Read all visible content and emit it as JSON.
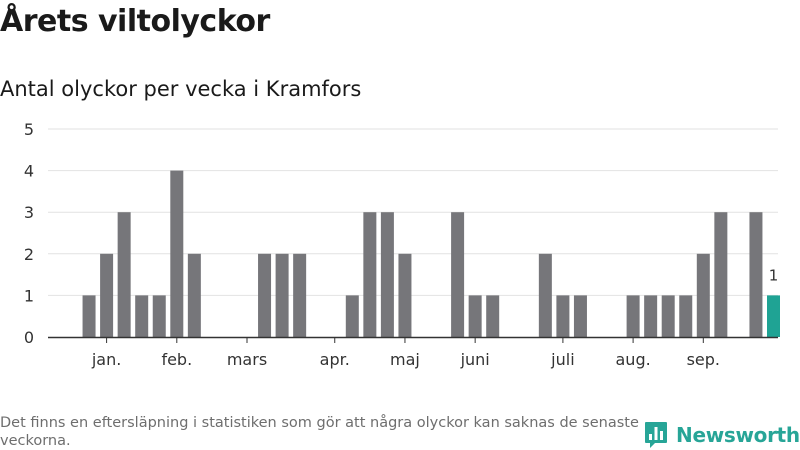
{
  "title": "Årets viltolyckor",
  "subtitle": "Antal olyckor per vecka i Kramfors",
  "footnote": "Det finns en eftersläpning i statistiken som gör att några olyckor kan saknas de senaste veckorna.",
  "brand": "Newsworthy",
  "colors": {
    "bar": "#76767a",
    "highlight": "#1fa394",
    "grid": "#e2e2e2",
    "axis": "#333333",
    "brand": "#27a597"
  },
  "chart_data": {
    "type": "bar",
    "title": "Antal olyckor per vecka i Kramfors",
    "xlabel": "",
    "ylabel": "",
    "ylim": [
      0,
      5
    ],
    "yticks": [
      0,
      1,
      2,
      3,
      4,
      5
    ],
    "weeks": [
      1,
      2,
      3,
      4,
      5,
      6,
      7,
      8,
      9,
      10,
      11,
      12,
      13,
      14,
      15,
      16,
      17,
      18,
      19,
      20,
      21,
      22,
      23,
      24,
      25,
      26,
      27,
      28,
      29,
      30,
      31,
      32,
      33,
      34,
      35,
      36,
      37,
      38,
      39,
      40,
      41
    ],
    "values": [
      0,
      1,
      2,
      3,
      1,
      1,
      4,
      2,
      0,
      0,
      0,
      2,
      2,
      2,
      0,
      0,
      1,
      3,
      3,
      2,
      0,
      0,
      3,
      1,
      1,
      0,
      0,
      2,
      1,
      1,
      0,
      0,
      1,
      1,
      1,
      1,
      2,
      3,
      0,
      3,
      1
    ],
    "highlight_index": 40,
    "highlight_label": "1",
    "month_labels": [
      {
        "label": "jan.",
        "week": 3
      },
      {
        "label": "feb.",
        "week": 7
      },
      {
        "label": "mars",
        "week": 11
      },
      {
        "label": "apr.",
        "week": 16
      },
      {
        "label": "maj",
        "week": 20
      },
      {
        "label": "juni",
        "week": 24
      },
      {
        "label": "juli",
        "week": 29
      },
      {
        "label": "aug.",
        "week": 33
      },
      {
        "label": "sep.",
        "week": 37
      }
    ],
    "grid": true,
    "legend": "none"
  }
}
